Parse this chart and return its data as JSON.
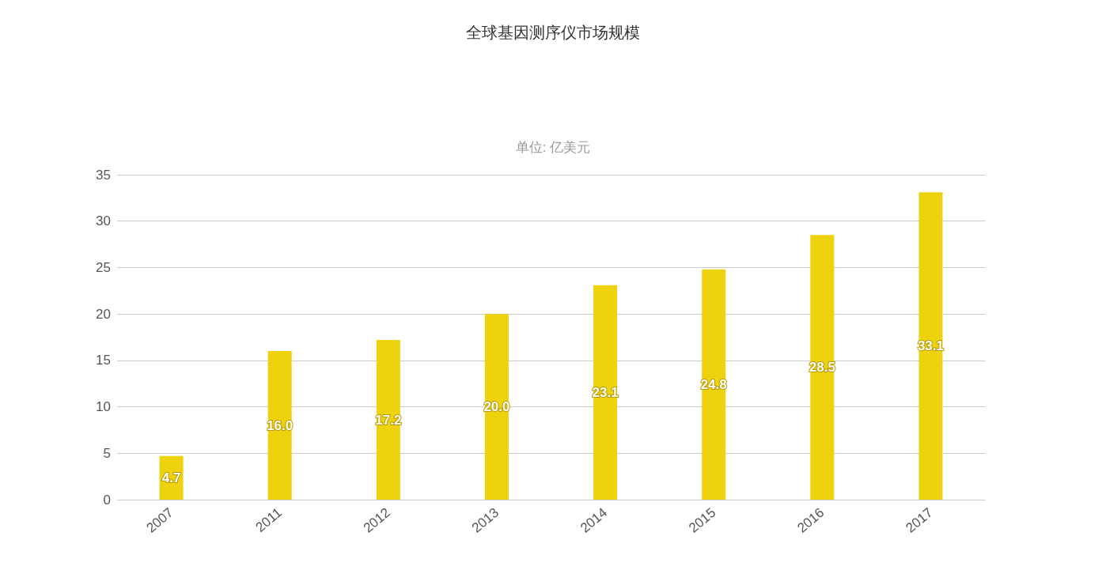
{
  "chart_data": {
    "type": "bar",
    "title": "全球基因测序仪市场规模",
    "subtitle": "单位: 亿美元",
    "categories": [
      "2007",
      "2011",
      "2012",
      "2013",
      "2014",
      "2015",
      "2016",
      "2017"
    ],
    "values": [
      4.7,
      16.0,
      17.2,
      20.0,
      23.1,
      24.8,
      28.5,
      33.1
    ],
    "value_labels": [
      "4.7",
      "16.0",
      "17.2",
      "20.0",
      "23.1",
      "24.8",
      "28.5",
      "33.1"
    ],
    "color": "#efd20e",
    "ylim": [
      0,
      35
    ],
    "yticks": [
      0,
      5,
      10,
      15,
      20,
      25,
      30,
      35
    ],
    "grid": "y"
  }
}
